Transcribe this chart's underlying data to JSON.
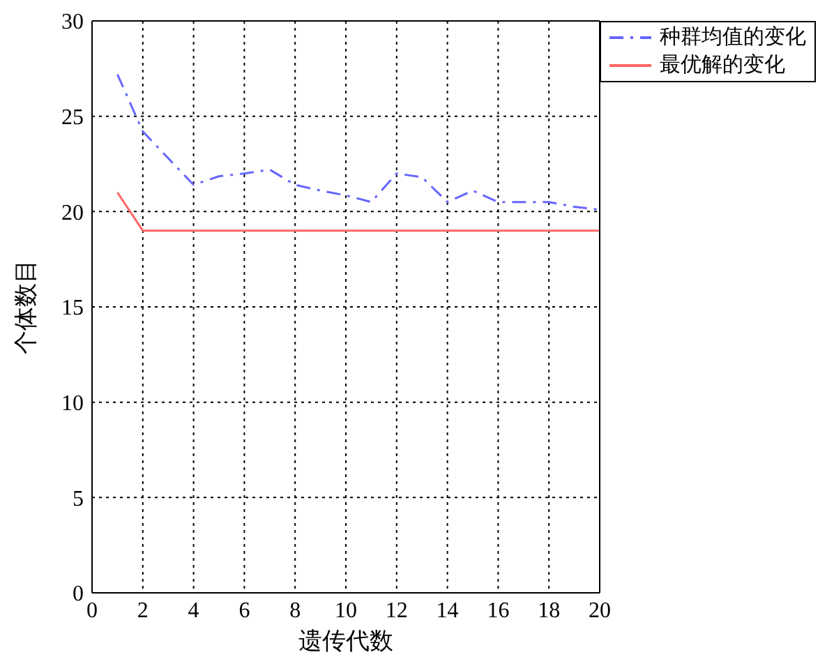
{
  "chart_data": {
    "type": "line",
    "xlabel": "遗传代数",
    "ylabel": "个体数目",
    "x": [
      1,
      2,
      3,
      4,
      5,
      6,
      7,
      8,
      9,
      10,
      11,
      12,
      13,
      14,
      15,
      16,
      17,
      18,
      19,
      20
    ],
    "series": [
      {
        "name": "种群均值的变化",
        "color": "#6666ff",
        "line_style": "dashed",
        "values": [
          27.2,
          24.2,
          22.8,
          21.4,
          21.85,
          22.0,
          22.2,
          21.4,
          21.1,
          20.85,
          20.5,
          22.0,
          21.8,
          20.5,
          21.1,
          20.5,
          20.5,
          20.5,
          20.25,
          20.1
        ]
      },
      {
        "name": "最优解的变化",
        "color": "#ff6666",
        "line_style": "solid",
        "values": [
          21,
          19,
          19,
          19,
          19,
          19,
          19,
          19,
          19,
          19,
          19,
          19,
          19,
          19,
          19,
          19,
          19,
          19,
          19,
          19
        ]
      }
    ],
    "xlim": [
      0,
      20
    ],
    "xticks": [
      0,
      2,
      4,
      6,
      8,
      10,
      12,
      14,
      16,
      18,
      20
    ],
    "ylim": [
      0,
      30
    ],
    "yticks": [
      0,
      5,
      10,
      15,
      20,
      25,
      30
    ],
    "grid": true,
    "legend": "top right",
    "marker": "none"
  }
}
